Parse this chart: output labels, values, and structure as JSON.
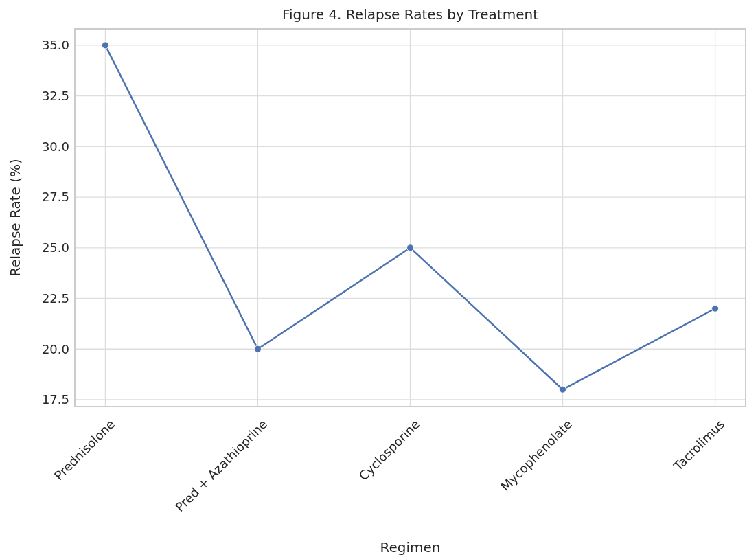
{
  "chart_data": {
    "type": "line",
    "title": "Figure 4. Relapse Rates by Treatment",
    "xlabel": "Regimen",
    "ylabel": "Relapse Rate (%)",
    "categories": [
      "Prednisolone",
      "Pred + Azathioprine",
      "Cyclosporine",
      "Mycophenolate",
      "Tacrolimus"
    ],
    "series": [
      {
        "color": "#4c72b0",
        "values": [
          35,
          20,
          25,
          18,
          22
        ]
      }
    ],
    "ylim": [
      17.16,
      35.81
    ],
    "yticks": [
      {
        "value": 17.5,
        "label": "17.5"
      },
      {
        "value": 20,
        "label": "20.0"
      },
      {
        "value": 22.5,
        "label": "22.5"
      },
      {
        "value": 25,
        "label": "25.0"
      },
      {
        "value": 27.5,
        "label": "27.5"
      },
      {
        "value": 30,
        "label": "30.0"
      },
      {
        "value": 32.5,
        "label": "32.5"
      },
      {
        "value": 35,
        "label": "35.0"
      }
    ],
    "grid": true,
    "marker": "circle",
    "line_style": "solid"
  }
}
